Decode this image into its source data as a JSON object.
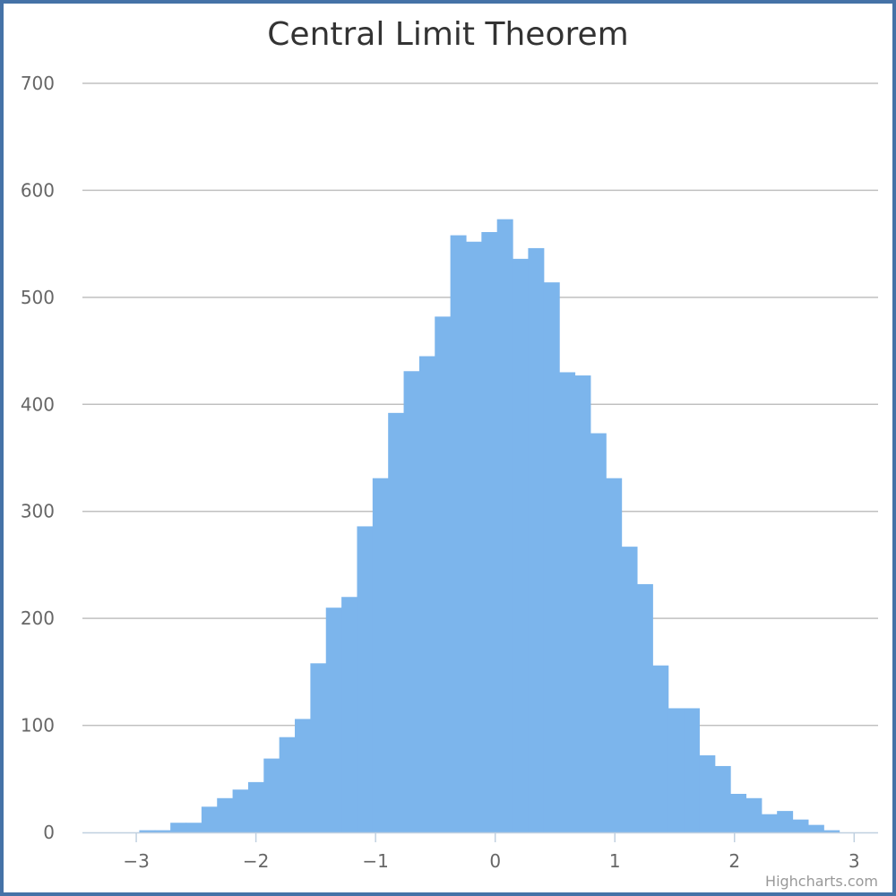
{
  "chart_data": {
    "type": "bar",
    "title": "Central Limit Theorem",
    "xlabel": "",
    "ylabel": "",
    "xlim": [
      -3.45,
      3.2
    ],
    "ylim": [
      0,
      700
    ],
    "x_ticks": [
      "−3",
      "−2",
      "−1",
      "0",
      "1",
      "2",
      "3"
    ],
    "y_ticks": [
      "0",
      "100",
      "200",
      "300",
      "400",
      "500",
      "600",
      "700"
    ],
    "grid": true,
    "legend": "none",
    "colors": {
      "bar": "#7cb5ec",
      "grid": "#c0c0c0",
      "axis": "#c0d0e0",
      "border": "#4572a7"
    },
    "bins": [
      {
        "x0": -2.975,
        "x1": -2.845,
        "value": 2
      },
      {
        "x0": -2.845,
        "x1": -2.715,
        "value": 2
      },
      {
        "x0": -2.715,
        "x1": -2.585,
        "value": 9
      },
      {
        "x0": -2.585,
        "x1": -2.455,
        "value": 9
      },
      {
        "x0": -2.455,
        "x1": -2.325,
        "value": 24
      },
      {
        "x0": -2.325,
        "x1": -2.195,
        "value": 32
      },
      {
        "x0": -2.195,
        "x1": -2.065,
        "value": 40
      },
      {
        "x0": -2.065,
        "x1": -1.935,
        "value": 47
      },
      {
        "x0": -1.935,
        "x1": -1.805,
        "value": 69
      },
      {
        "x0": -1.805,
        "x1": -1.675,
        "value": 89
      },
      {
        "x0": -1.675,
        "x1": -1.545,
        "value": 106
      },
      {
        "x0": -1.545,
        "x1": -1.415,
        "value": 158
      },
      {
        "x0": -1.415,
        "x1": -1.285,
        "value": 210
      },
      {
        "x0": -1.285,
        "x1": -1.155,
        "value": 220
      },
      {
        "x0": -1.155,
        "x1": -1.025,
        "value": 286
      },
      {
        "x0": -1.025,
        "x1": -0.895,
        "value": 331
      },
      {
        "x0": -0.895,
        "x1": -0.765,
        "value": 392
      },
      {
        "x0": -0.765,
        "x1": -0.635,
        "value": 431
      },
      {
        "x0": -0.635,
        "x1": -0.505,
        "value": 445
      },
      {
        "x0": -0.505,
        "x1": -0.375,
        "value": 482
      },
      {
        "x0": -0.375,
        "x1": -0.245,
        "value": 558
      },
      {
        "x0": -0.245,
        "x1": -0.115,
        "value": 552
      },
      {
        "x0": -0.115,
        "x1": 0.015,
        "value": 561
      },
      {
        "x0": 0.015,
        "x1": 0.145,
        "value": 573
      },
      {
        "x0": 0.145,
        "x1": 0.275,
        "value": 536
      },
      {
        "x0": 0.275,
        "x1": 0.405,
        "value": 546
      },
      {
        "x0": 0.405,
        "x1": 0.535,
        "value": 514
      },
      {
        "x0": 0.535,
        "x1": 0.665,
        "value": 430
      },
      {
        "x0": 0.665,
        "x1": 0.795,
        "value": 427
      },
      {
        "x0": 0.795,
        "x1": 0.925,
        "value": 373
      },
      {
        "x0": 0.925,
        "x1": 1.055,
        "value": 331
      },
      {
        "x0": 1.055,
        "x1": 1.185,
        "value": 267
      },
      {
        "x0": 1.185,
        "x1": 1.315,
        "value": 232
      },
      {
        "x0": 1.315,
        "x1": 1.445,
        "value": 156
      },
      {
        "x0": 1.445,
        "x1": 1.575,
        "value": 116
      },
      {
        "x0": 1.575,
        "x1": 1.705,
        "value": 116
      },
      {
        "x0": 1.705,
        "x1": 1.835,
        "value": 72
      },
      {
        "x0": 1.835,
        "x1": 1.965,
        "value": 62
      },
      {
        "x0": 1.965,
        "x1": 2.095,
        "value": 36
      },
      {
        "x0": 2.095,
        "x1": 2.225,
        "value": 32
      },
      {
        "x0": 2.225,
        "x1": 2.355,
        "value": 17
      },
      {
        "x0": 2.355,
        "x1": 2.485,
        "value": 20
      },
      {
        "x0": 2.485,
        "x1": 2.615,
        "value": 12
      },
      {
        "x0": 2.615,
        "x1": 2.745,
        "value": 7
      },
      {
        "x0": 2.745,
        "x1": 2.875,
        "value": 2
      }
    ]
  },
  "credits": "Highcharts.com"
}
